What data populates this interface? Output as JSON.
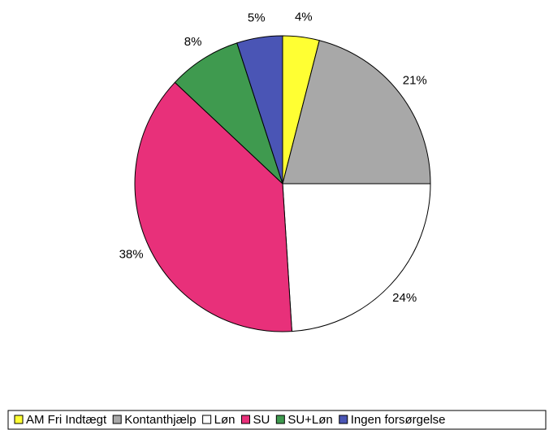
{
  "chart_data": {
    "type": "pie",
    "categories": [
      "AM Fri Indtægt",
      "Kontanthjælp",
      "Løn",
      "SU",
      "SU+Løn",
      "Ingen forsørgelse"
    ],
    "values": [
      4,
      21,
      24,
      38,
      8,
      5
    ],
    "value_labels": [
      "4%",
      "21%",
      "24%",
      "38%",
      "8%",
      "5%"
    ],
    "colors": [
      "#ffff33",
      "#a8a8a8",
      "#ffffff",
      "#e8307a",
      "#3f9a4f",
      "#4a55b5"
    ],
    "legend": "bottom"
  }
}
